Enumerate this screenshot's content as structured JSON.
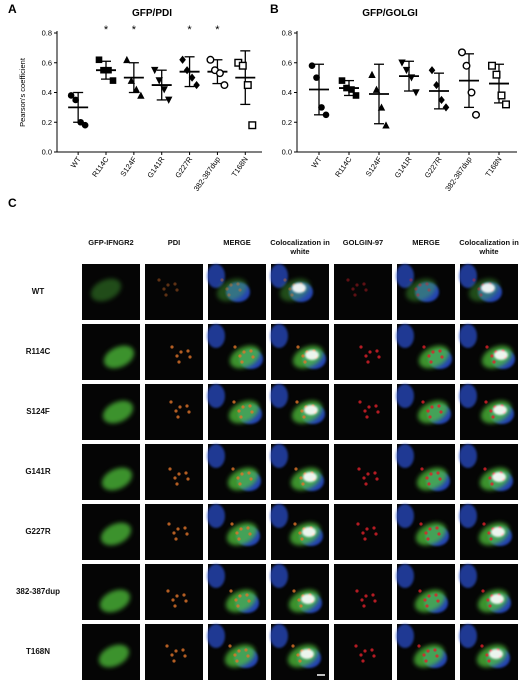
{
  "chart_data": [
    {
      "type": "scatter",
      "panel_label": "A",
      "title": "GFP/PDI",
      "ylabel": "Pearson's coefficient",
      "categories": [
        "WT",
        "R114C",
        "S124F",
        "G141R",
        "G227R",
        "382-387dup",
        "T168N"
      ],
      "markers": [
        "circle",
        "square",
        "triangle-up",
        "triangle-down",
        "diamond",
        "circle-open",
        "square-open"
      ],
      "color": "#000000",
      "points": [
        [
          0.38,
          0.35,
          0.2,
          0.18
        ],
        [
          0.62,
          0.55,
          0.55,
          0.48
        ],
        [
          0.62,
          0.48,
          0.42,
          0.38
        ],
        [
          0.55,
          0.48,
          0.42,
          0.35
        ],
        [
          0.62,
          0.55,
          0.5,
          0.45
        ],
        [
          0.62,
          0.55,
          0.53,
          0.45
        ],
        [
          0.6,
          0.58,
          0.45,
          0.18
        ]
      ],
      "mean": [
        0.3,
        0.55,
        0.5,
        0.45,
        0.54,
        0.54,
        0.5
      ],
      "sd": [
        0.1,
        0.06,
        0.1,
        0.1,
        0.1,
        0.08,
        0.18
      ],
      "significance": [
        null,
        "*",
        "*",
        null,
        "*",
        "*",
        null
      ],
      "ylim": [
        0,
        0.8
      ],
      "yticks": [
        {
          "value": 0,
          "label": "0.0"
        },
        0.2,
        0.4,
        0.6,
        0.8
      ]
    },
    {
      "type": "scatter",
      "panel_label": "B",
      "title": "GFP/GOLGI",
      "categories": [
        "WT",
        "R114C",
        "S124F",
        "G141R",
        "G227R",
        "382-387dup",
        "T168N"
      ],
      "markers": [
        "circle",
        "square",
        "triangle-up",
        "triangle-down",
        "diamond",
        "circle-open",
        "square-open"
      ],
      "color": "#000000",
      "points": [
        [
          0.58,
          0.5,
          0.3,
          0.25
        ],
        [
          0.48,
          0.43,
          0.42,
          0.38
        ],
        [
          0.52,
          0.42,
          0.3,
          0.18
        ],
        [
          0.6,
          0.55,
          0.5,
          0.4
        ],
        [
          0.55,
          0.45,
          0.35,
          0.3
        ],
        [
          0.67,
          0.58,
          0.4,
          0.25
        ],
        [
          0.58,
          0.52,
          0.38,
          0.32
        ]
      ],
      "mean": [
        0.42,
        0.43,
        0.39,
        0.51,
        0.41,
        0.48,
        0.46
      ],
      "sd": [
        0.17,
        0.05,
        0.2,
        0.1,
        0.12,
        0.18,
        0.13
      ],
      "ylim": [
        0,
        0.8
      ],
      "yticks": [
        {
          "value": 0,
          "label": "0.0"
        },
        0.2,
        0.4,
        0.6,
        0.8
      ]
    }
  ],
  "figure_c": {
    "panel_label": "C",
    "columns": [
      "GFP-IFNGR2",
      "PDI",
      "MERGE",
      "Colocalization in white",
      "GOLGIN-97",
      "MERGE",
      "Colocalization in white"
    ],
    "rows": [
      "WT",
      "R114C",
      "S124F",
      "G141R",
      "G227R",
      "382-387dup",
      "T168N"
    ]
  }
}
